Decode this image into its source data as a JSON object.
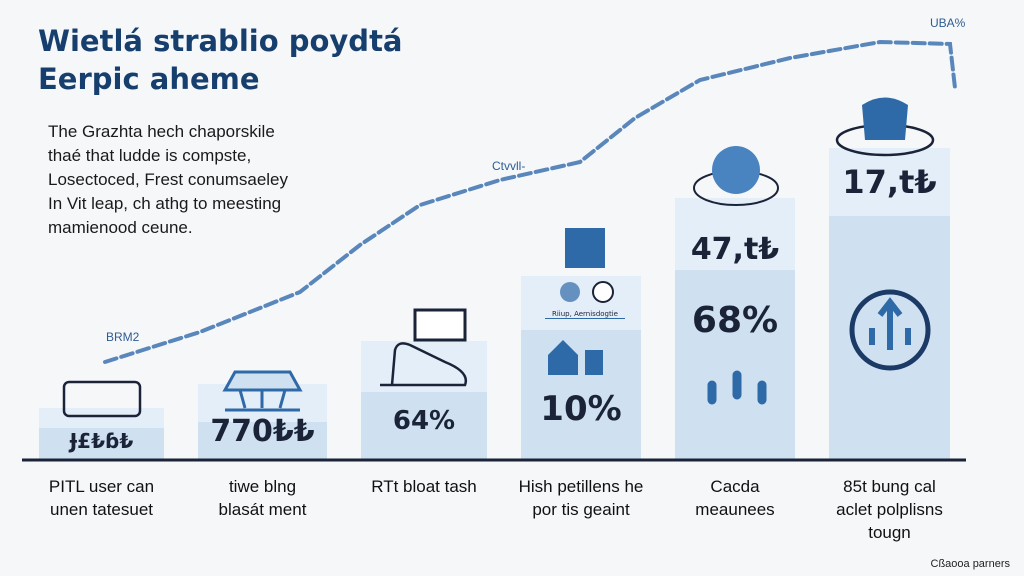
{
  "title_lines": [
    "Wietlá strablio poydtá",
    "Eerpic aheme"
  ],
  "description": "The Grazhta hech chaporskile\nthaé that ludde is compste,\nLosectoced, Frest conumsaeley\nIn Vit leap, ch athg to meesting\nmamienood ceune.",
  "credit": "Cßaooa parners",
  "colors": {
    "title": "#173f6e",
    "bar_light": "#e4eef8",
    "bar_dark": "#cfe0f1",
    "accent": "#2f6aa8",
    "axis": "#1b2338"
  },
  "chart_data": {
    "type": "bar",
    "categories": [
      "PITL user can\nunen tatesuet",
      "tiwe blng\nblasát ment",
      "RTt bloat tash",
      "Hish petillens he\npor tis geaint",
      "Cacda\nmeaunees",
      "85t bung cal\naclet polplisns\ntougn"
    ],
    "value_labels": [
      [
        "Ɉ£₺ɓ₺",
        ""
      ],
      [
        "770₺₺",
        ""
      ],
      [
        "64%",
        ""
      ],
      [
        "10%",
        ""
      ],
      [
        "47,t₺",
        "68%"
      ],
      [
        "17,t₺",
        ""
      ]
    ],
    "bar_icon_names": [
      "wallet-icon",
      "bridge-icon",
      "shoe-icon",
      "monitor-icon",
      "globe-icon",
      "robot-icon"
    ],
    "sub_icon_names": [
      "",
      "",
      "",
      "house-icon",
      "people-icon",
      "circle-arrows-icon"
    ],
    "small_caption": "Riiup, Aernisdogtie",
    "trend_line": {
      "labels": [
        "BRM2",
        "Ctvvll-",
        "UBA%"
      ],
      "style": "dashed"
    }
  }
}
